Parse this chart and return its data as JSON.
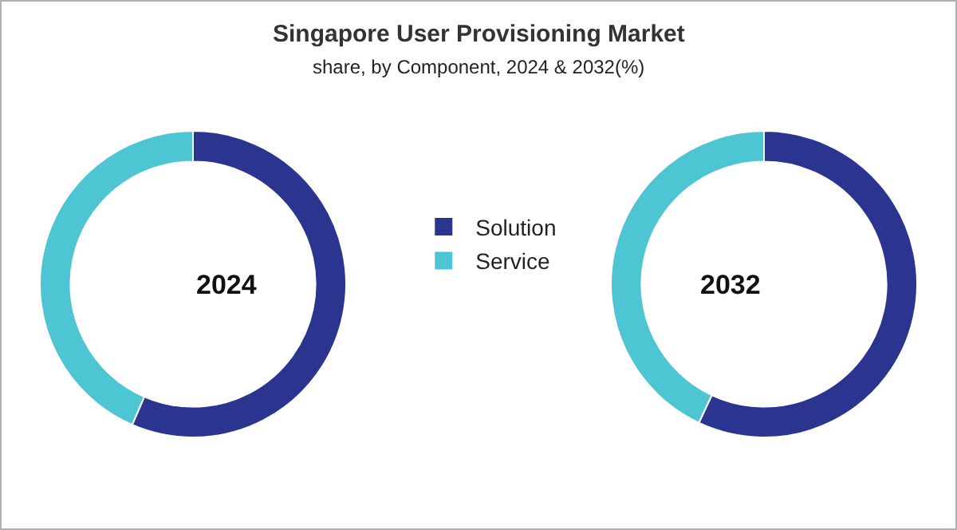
{
  "chart_data": {
    "type": "donut",
    "title": "Singapore User Provisioning Market",
    "subtitle": "share, by Component, 2024 & 2032(%)",
    "categories": [
      "Solution",
      "Service"
    ],
    "colors": [
      "#2b3590",
      "#4ec5d2"
    ],
    "legend": "right",
    "series": [
      {
        "name": "2024",
        "values": [
          56.5,
          43.5
        ]
      },
      {
        "name": "2032",
        "values": [
          57,
          43
        ]
      }
    ]
  }
}
